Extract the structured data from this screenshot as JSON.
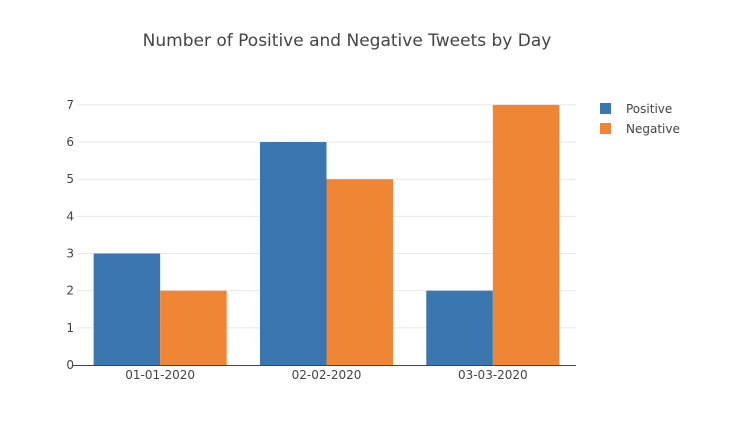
{
  "chart_data": {
    "type": "bar",
    "title": "Number of Positive and Negative Tweets by Day",
    "xlabel": "",
    "ylabel": "",
    "categories": [
      "01-01-2020",
      "02-02-2020",
      "03-03-2020"
    ],
    "series": [
      {
        "name": "Positive",
        "values": [
          3,
          6,
          2
        ],
        "color": "#3a76af"
      },
      {
        "name": "Negative",
        "values": [
          2,
          5,
          7
        ],
        "color": "#ef8636"
      }
    ],
    "ylim": [
      0,
      7.4
    ],
    "yticks": [
      "0",
      "1",
      "2",
      "3",
      "4",
      "5",
      "6",
      "7"
    ],
    "grid": true,
    "legend_position": "top-right"
  }
}
